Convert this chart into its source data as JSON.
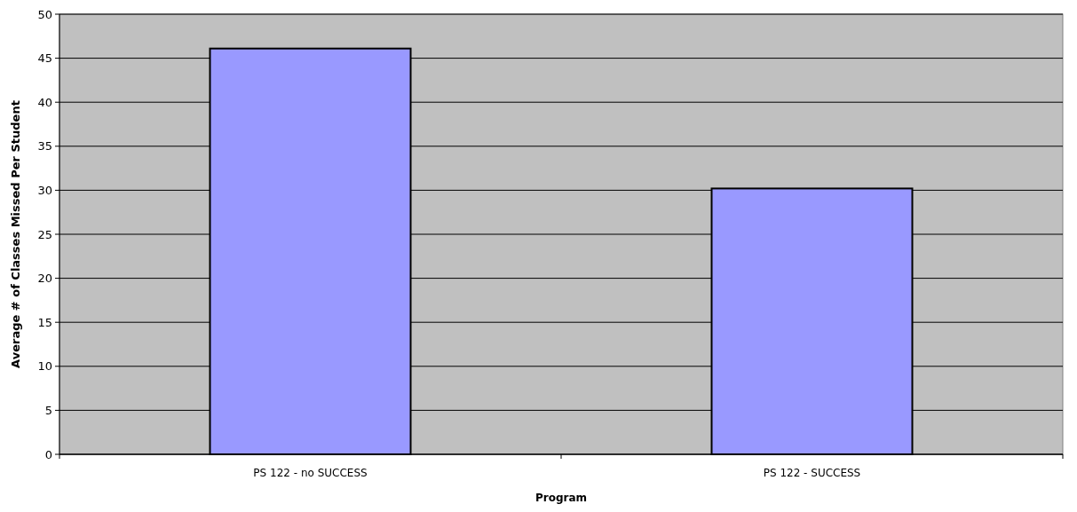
{
  "chart_data": {
    "type": "bar",
    "xlabel": "Program",
    "ylabel": "Average # of Classes Missed Per Student",
    "categories": [
      "PS 122 - no SUCCESS",
      "PS 122 - SUCCESS"
    ],
    "values": [
      46.1,
      30.2
    ],
    "color": "#9999ff",
    "ylim": [
      0,
      50
    ],
    "yticks": [
      0,
      5,
      10,
      15,
      20,
      25,
      30,
      35,
      40,
      45,
      50
    ],
    "grid": "y"
  }
}
